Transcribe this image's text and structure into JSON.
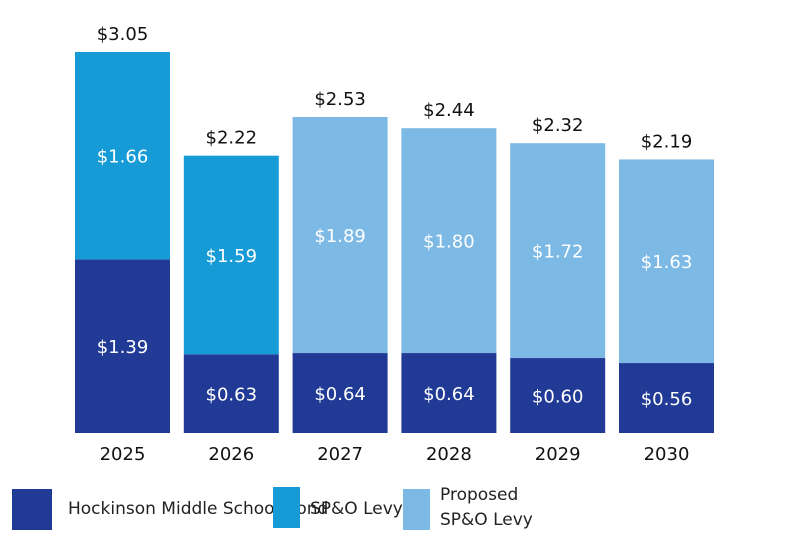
{
  "chart_data": {
    "type": "bar",
    "stacked": true,
    "categories": [
      "2025",
      "2026",
      "2027",
      "2028",
      "2029",
      "2030"
    ],
    "series": [
      {
        "name": "Hockinson Middle School Bond",
        "color": "#213A96",
        "values": [
          1.39,
          0.63,
          0.64,
          0.64,
          0.6,
          0.56
        ],
        "labels": [
          "$1.39",
          "$0.63",
          "$0.64",
          "$0.64",
          "$0.60",
          "$0.56"
        ]
      },
      {
        "name": "SP&O Levy",
        "color": "#169BD7",
        "values": [
          1.66,
          1.59,
          null,
          null,
          null,
          null
        ],
        "labels": [
          "$1.66",
          "$1.59",
          "",
          "",
          "",
          ""
        ]
      },
      {
        "name": "Proposed SP&O Levy",
        "color": "#7DB9E5",
        "values": [
          null,
          null,
          1.89,
          1.8,
          1.72,
          1.63
        ],
        "labels": [
          "",
          "",
          "$1.89",
          "$1.80",
          "$1.72",
          "$1.63"
        ]
      }
    ],
    "totals": [
      "$3.05",
      "$2.22",
      "$2.53",
      "$2.44",
      "$2.32",
      "$2.19"
    ],
    "ylim": [
      0,
      3.05
    ],
    "grid": false,
    "legend_position": "bottom"
  },
  "legend": {
    "bond": "Hockinson Middle School Bond",
    "levy": "SP&O Levy",
    "proposed_line1": "Proposed",
    "proposed_line2": "SP&O Levy"
  }
}
